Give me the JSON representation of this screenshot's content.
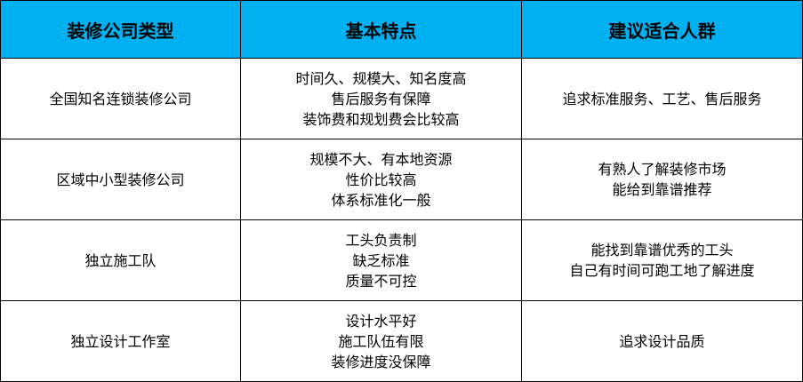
{
  "colors": {
    "header_bg": "#00B0F0"
  },
  "headers": [
    "装修公司类型",
    "基本特点",
    "建议适合人群"
  ],
  "rows": [
    {
      "type": "全国知名连锁装修公司",
      "features": [
        "时间久、规模大、知名度高",
        "售后服务有保障",
        "装饰费和规划费会比较高"
      ],
      "audience": [
        "追求标准服务、工艺、售后服务"
      ]
    },
    {
      "type": "区域中小型装修公司",
      "features": [
        "规模不大、有本地资源",
        "性价比较高",
        "体系标准化一般"
      ],
      "audience": [
        "有熟人了解装修市场",
        "能给到靠谱推荐"
      ]
    },
    {
      "type": "独立施工队",
      "features": [
        "工头负责制",
        "缺乏标准",
        "质量不可控"
      ],
      "audience": [
        "能找到靠谱优秀的工头",
        "自己有时间可跑工地了解进度"
      ]
    },
    {
      "type": "独立设计工作室",
      "features": [
        "设计水平好",
        "施工队伍有限",
        "装修进度没保障"
      ],
      "audience": [
        "追求设计品质"
      ]
    }
  ]
}
